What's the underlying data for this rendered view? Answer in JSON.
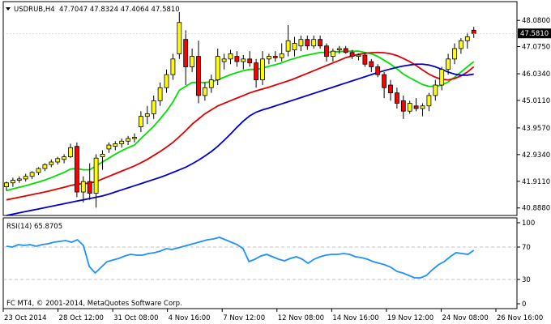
{
  "header": {
    "symbol": "USDRUB,H4",
    "ohlc": "47.7047 47.8324 47.4064 47.5810"
  },
  "rsi_panel": {
    "label": "RSI(14) 65.8705"
  },
  "copyright": "FC MT4, © 2001-2014, MetaQuotes Software Corp.",
  "colors": {
    "bull_candle": "#ffff00",
    "bear_candle": "#ff0000",
    "ma_fast": "#00e000",
    "ma_mid": "#e00000",
    "ma_slow": "#0000cc",
    "rsi_line": "#1e90ff",
    "last_price_tag": "#000000"
  },
  "chart_data": [
    {
      "type": "candlestick",
      "title": "USDRUB,H4",
      "ylim": [
        40.6,
        48.8
      ],
      "y_ticks": [
        48.08,
        47.075,
        46.034,
        45.011,
        43.957,
        42.934,
        41.911,
        40.888
      ],
      "y_tick_labels": [
        "48.0800",
        "47.0750",
        "46.0340",
        "45.0110",
        "43.9570",
        "42.9340",
        "41.9110",
        "40.8880"
      ],
      "last_price_label": "47.5810",
      "last_price": 47.581,
      "x_tick_labels": [
        "23 Oct 2014",
        "28 Oct 12:00",
        "31 Oct 08:00",
        "4 Nov 16:00",
        "7 Nov 12:00",
        "12 Nov 08:00",
        "14 Nov 16:00",
        "19 Nov 12:00",
        "24 Nov 08:00",
        "26 Nov 16:00"
      ],
      "candles": [
        {
          "o": 41.7,
          "h": 41.9,
          "l": 41.55,
          "c": 41.85
        },
        {
          "o": 41.85,
          "h": 42.05,
          "l": 41.7,
          "c": 41.95
        },
        {
          "o": 41.95,
          "h": 42.1,
          "l": 41.85,
          "c": 42.0
        },
        {
          "o": 42.0,
          "h": 42.2,
          "l": 41.9,
          "c": 42.1
        },
        {
          "o": 42.1,
          "h": 42.3,
          "l": 42.0,
          "c": 42.25
        },
        {
          "o": 42.25,
          "h": 42.45,
          "l": 42.15,
          "c": 42.4
        },
        {
          "o": 42.4,
          "h": 42.6,
          "l": 42.3,
          "c": 42.55
        },
        {
          "o": 42.55,
          "h": 42.75,
          "l": 42.45,
          "c": 42.65
        },
        {
          "o": 42.65,
          "h": 42.85,
          "l": 42.55,
          "c": 42.78
        },
        {
          "o": 42.75,
          "h": 42.95,
          "l": 42.6,
          "c": 42.85
        },
        {
          "o": 42.85,
          "h": 43.35,
          "l": 42.8,
          "c": 43.2
        },
        {
          "o": 43.25,
          "h": 43.4,
          "l": 41.3,
          "c": 41.5
        },
        {
          "o": 41.5,
          "h": 42.1,
          "l": 41.1,
          "c": 41.9
        },
        {
          "o": 41.9,
          "h": 42.6,
          "l": 41.2,
          "c": 41.45
        },
        {
          "o": 41.45,
          "h": 42.95,
          "l": 40.9,
          "c": 42.8
        },
        {
          "o": 42.85,
          "h": 43.1,
          "l": 42.35,
          "c": 42.95
        },
        {
          "o": 43.15,
          "h": 43.4,
          "l": 43.0,
          "c": 43.3
        },
        {
          "o": 43.25,
          "h": 43.45,
          "l": 43.1,
          "c": 43.35
        },
        {
          "o": 43.35,
          "h": 43.55,
          "l": 43.2,
          "c": 43.45
        },
        {
          "o": 43.45,
          "h": 43.65,
          "l": 43.3,
          "c": 43.55
        },
        {
          "o": 43.55,
          "h": 43.75,
          "l": 43.4,
          "c": 43.6
        },
        {
          "o": 44.0,
          "h": 44.6,
          "l": 43.8,
          "c": 44.4
        },
        {
          "o": 44.4,
          "h": 44.8,
          "l": 44.1,
          "c": 44.5
        },
        {
          "o": 44.5,
          "h": 45.2,
          "l": 44.3,
          "c": 45.0
        },
        {
          "o": 45.0,
          "h": 45.7,
          "l": 44.8,
          "c": 45.5
        },
        {
          "o": 45.5,
          "h": 46.2,
          "l": 45.3,
          "c": 46.0
        },
        {
          "o": 46.0,
          "h": 46.8,
          "l": 45.8,
          "c": 46.6
        },
        {
          "o": 46.8,
          "h": 48.4,
          "l": 46.6,
          "c": 48.0
        },
        {
          "o": 47.35,
          "h": 47.7,
          "l": 45.6,
          "c": 46.3
        },
        {
          "o": 46.3,
          "h": 47.0,
          "l": 46.1,
          "c": 46.7
        },
        {
          "o": 46.7,
          "h": 47.3,
          "l": 44.9,
          "c": 45.2
        },
        {
          "o": 45.2,
          "h": 45.7,
          "l": 45.0,
          "c": 45.5
        },
        {
          "o": 45.5,
          "h": 46.0,
          "l": 45.3,
          "c": 45.8
        },
        {
          "o": 45.8,
          "h": 47.0,
          "l": 45.6,
          "c": 46.7
        },
        {
          "o": 46.5,
          "h": 46.8,
          "l": 46.2,
          "c": 46.6
        },
        {
          "o": 46.6,
          "h": 46.95,
          "l": 46.4,
          "c": 46.8
        },
        {
          "o": 46.7,
          "h": 46.9,
          "l": 46.3,
          "c": 46.5
        },
        {
          "o": 46.5,
          "h": 46.75,
          "l": 46.2,
          "c": 46.6
        },
        {
          "o": 46.6,
          "h": 46.9,
          "l": 46.3,
          "c": 46.45
        },
        {
          "o": 46.45,
          "h": 46.6,
          "l": 45.5,
          "c": 45.8
        },
        {
          "o": 45.8,
          "h": 46.9,
          "l": 45.6,
          "c": 46.6
        },
        {
          "o": 46.6,
          "h": 46.8,
          "l": 46.4,
          "c": 46.7
        },
        {
          "o": 46.7,
          "h": 46.9,
          "l": 46.5,
          "c": 46.65
        },
        {
          "o": 46.65,
          "h": 47.2,
          "l": 46.5,
          "c": 46.8
        },
        {
          "o": 46.9,
          "h": 47.9,
          "l": 46.7,
          "c": 47.3
        },
        {
          "o": 46.95,
          "h": 47.45,
          "l": 46.7,
          "c": 47.2
        },
        {
          "o": 47.1,
          "h": 47.5,
          "l": 46.9,
          "c": 47.35
        },
        {
          "o": 47.35,
          "h": 47.5,
          "l": 46.95,
          "c": 47.1
        },
        {
          "o": 47.1,
          "h": 47.5,
          "l": 47.0,
          "c": 47.35
        },
        {
          "o": 47.35,
          "h": 47.5,
          "l": 47.0,
          "c": 47.1
        },
        {
          "o": 47.1,
          "h": 47.2,
          "l": 46.5,
          "c": 46.7
        },
        {
          "o": 46.7,
          "h": 47.0,
          "l": 46.5,
          "c": 46.9
        },
        {
          "o": 46.95,
          "h": 47.1,
          "l": 46.8,
          "c": 47.0
        },
        {
          "o": 47.0,
          "h": 47.1,
          "l": 46.8,
          "c": 46.85
        },
        {
          "o": 46.85,
          "h": 46.95,
          "l": 46.6,
          "c": 46.7
        },
        {
          "o": 46.7,
          "h": 46.8,
          "l": 46.55,
          "c": 46.75
        },
        {
          "o": 46.75,
          "h": 46.85,
          "l": 46.3,
          "c": 46.4
        },
        {
          "o": 46.5,
          "h": 46.6,
          "l": 46.1,
          "c": 46.3
        },
        {
          "o": 46.3,
          "h": 46.4,
          "l": 45.9,
          "c": 46.0
        },
        {
          "o": 46.0,
          "h": 46.1,
          "l": 45.1,
          "c": 45.5
        },
        {
          "o": 45.6,
          "h": 45.8,
          "l": 45.0,
          "c": 45.3
        },
        {
          "o": 45.3,
          "h": 45.5,
          "l": 44.7,
          "c": 44.9
        },
        {
          "o": 45.0,
          "h": 45.2,
          "l": 44.3,
          "c": 44.6
        },
        {
          "o": 44.6,
          "h": 45.0,
          "l": 44.5,
          "c": 44.9
        },
        {
          "o": 44.8,
          "h": 45.1,
          "l": 44.6,
          "c": 44.7
        },
        {
          "o": 44.7,
          "h": 44.9,
          "l": 44.4,
          "c": 44.8
        },
        {
          "o": 44.8,
          "h": 45.3,
          "l": 44.6,
          "c": 45.2
        },
        {
          "o": 45.2,
          "h": 45.8,
          "l": 45.0,
          "c": 45.6
        },
        {
          "o": 45.6,
          "h": 46.3,
          "l": 45.4,
          "c": 46.2
        },
        {
          "o": 46.2,
          "h": 46.8,
          "l": 46.0,
          "c": 46.6
        },
        {
          "o": 46.6,
          "h": 47.2,
          "l": 46.4,
          "c": 47.0
        },
        {
          "o": 47.0,
          "h": 47.4,
          "l": 46.8,
          "c": 47.3
        },
        {
          "o": 47.3,
          "h": 47.6,
          "l": 47.0,
          "c": 47.45
        },
        {
          "o": 47.7047,
          "h": 47.8324,
          "l": 47.4064,
          "c": 47.581
        }
      ],
      "series": [
        {
          "values": [
            41.55,
            41.62,
            41.68,
            41.74,
            41.81,
            41.88,
            41.96,
            42.05,
            42.15,
            42.25,
            42.38,
            42.4,
            42.35,
            42.35,
            42.5,
            42.65,
            42.8,
            42.95,
            43.08,
            43.2,
            43.3,
            43.55,
            43.78,
            44.02,
            44.3,
            44.6,
            44.95,
            45.4,
            45.55,
            45.7,
            45.7,
            45.7,
            45.72,
            45.8,
            45.9,
            46.0,
            46.08,
            46.15,
            46.2,
            46.2,
            46.25,
            46.32,
            46.38,
            46.45,
            46.55,
            46.62,
            46.7,
            46.75,
            46.8,
            46.85,
            46.85,
            46.87,
            46.88,
            46.9,
            46.9,
            46.9,
            46.85,
            46.8,
            46.7,
            46.55,
            46.4,
            46.22,
            46.02,
            45.88,
            45.75,
            45.62,
            45.55,
            45.55,
            45.6,
            45.72,
            45.9,
            46.1,
            46.3,
            46.5
          ]
        },
        {
          "values": [
            41.2,
            41.25,
            41.3,
            41.35,
            41.4,
            41.45,
            41.5,
            41.56,
            41.62,
            41.68,
            41.75,
            41.8,
            41.82,
            41.84,
            41.9,
            42.0,
            42.1,
            42.2,
            42.3,
            42.4,
            42.5,
            42.62,
            42.75,
            42.9,
            43.05,
            43.22,
            43.4,
            43.62,
            43.85,
            44.1,
            44.3,
            44.5,
            44.65,
            44.8,
            44.9,
            45.0,
            45.1,
            45.2,
            45.3,
            45.38,
            45.45,
            45.52,
            45.6,
            45.68,
            45.76,
            45.85,
            45.95,
            46.05,
            46.15,
            46.25,
            46.35,
            46.45,
            46.55,
            46.65,
            46.72,
            46.78,
            46.82,
            46.84,
            46.85,
            46.84,
            46.8,
            46.73,
            46.62,
            46.5,
            46.35,
            46.18,
            46.02,
            45.9,
            45.82,
            45.8,
            45.85,
            45.95,
            46.1,
            46.3
          ]
        },
        {
          "values": [
            40.6,
            40.65,
            40.7,
            40.75,
            40.8,
            40.85,
            40.9,
            40.95,
            41.0,
            41.05,
            41.1,
            41.15,
            41.2,
            41.25,
            41.3,
            41.35,
            41.42,
            41.5,
            41.58,
            41.66,
            41.74,
            41.82,
            41.9,
            41.98,
            42.06,
            42.15,
            42.25,
            42.35,
            42.45,
            42.58,
            42.72,
            42.88,
            43.05,
            43.25,
            43.48,
            43.72,
            43.98,
            44.22,
            44.42,
            44.56,
            44.65,
            44.72,
            44.8,
            44.88,
            44.96,
            45.04,
            45.12,
            45.2,
            45.28,
            45.36,
            45.44,
            45.52,
            45.6,
            45.68,
            45.76,
            45.84,
            45.92,
            46.0,
            46.08,
            46.15,
            46.22,
            46.28,
            46.33,
            46.37,
            46.4,
            46.4,
            46.37,
            46.3,
            46.2,
            46.1,
            46.02,
            45.98,
            45.98,
            46.02
          ]
        }
      ]
    },
    {
      "type": "line",
      "title": "RSI(14) 65.8705",
      "ylim": [
        0,
        100
      ],
      "y_ticks": [
        100,
        70,
        30,
        0
      ],
      "y_tick_labels": [
        "100",
        "70",
        "30",
        "0"
      ],
      "levels": [
        70,
        30
      ],
      "series": [
        {
          "values": [
            71,
            70,
            73,
            72,
            73,
            71,
            73,
            74,
            76,
            77,
            78,
            76,
            79,
            72,
            46,
            38,
            45,
            52,
            54,
            56,
            59,
            61,
            60,
            60,
            62,
            63,
            65,
            68,
            67,
            69,
            71,
            73,
            75,
            77,
            79,
            80,
            82,
            79,
            76,
            73,
            68,
            52,
            55,
            59,
            61,
            58,
            55,
            53,
            56,
            58,
            55,
            50,
            55,
            58,
            60,
            61,
            61,
            62,
            61,
            58,
            57,
            55,
            52,
            50,
            48,
            45,
            40,
            38,
            35,
            32,
            32,
            35,
            42,
            48,
            52,
            58,
            63,
            62,
            61,
            66
          ]
        }
      ]
    }
  ]
}
